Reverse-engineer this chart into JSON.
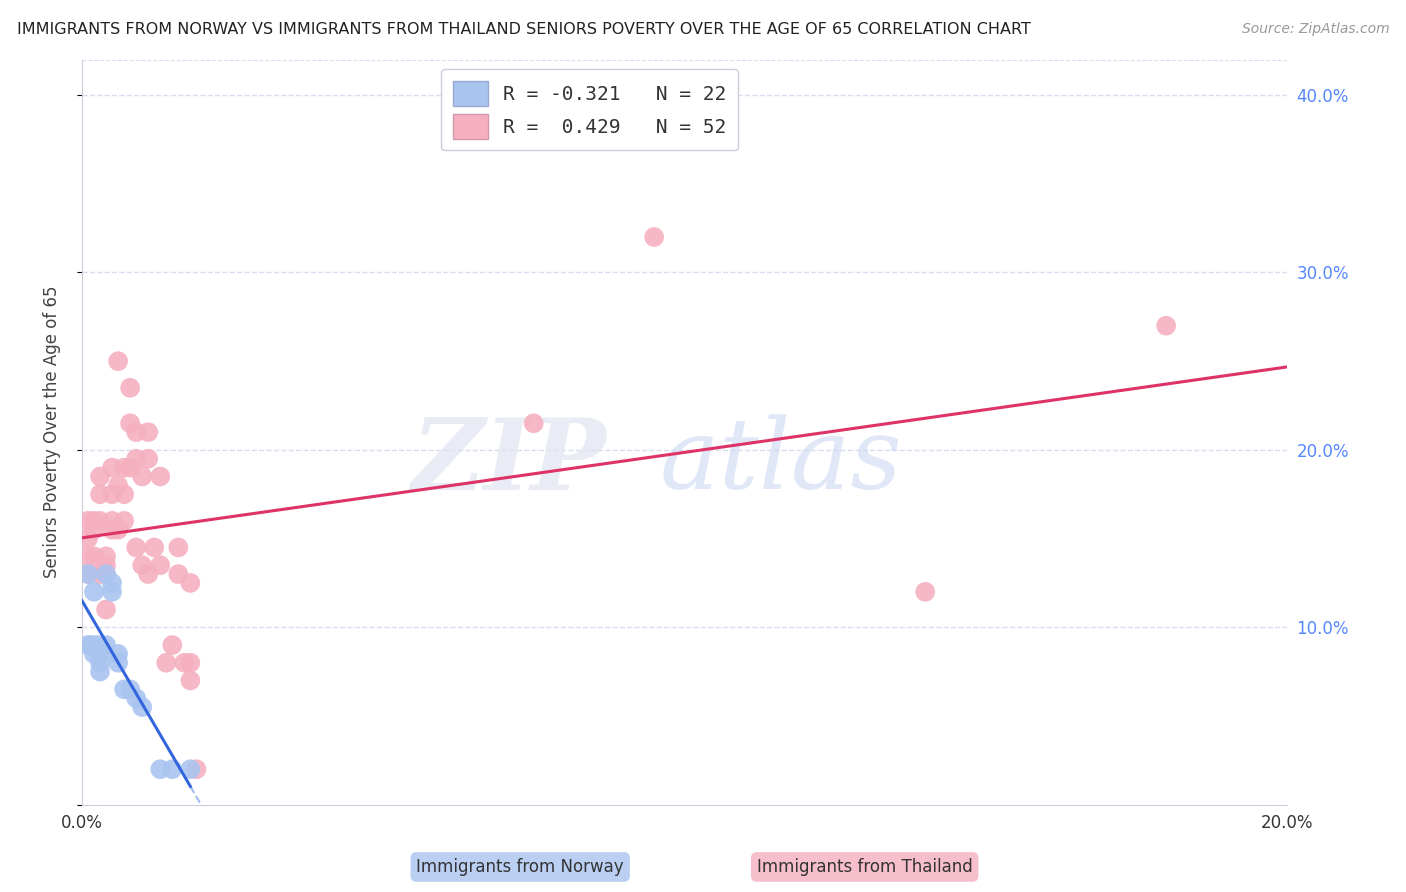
{
  "title": "IMMIGRANTS FROM NORWAY VS IMMIGRANTS FROM THAILAND SENIORS POVERTY OVER THE AGE OF 65 CORRELATION CHART",
  "source": "Source: ZipAtlas.com",
  "ylabel": "Seniors Poverty Over the Age of 65",
  "xlim": [
    0.0,
    0.2
  ],
  "ylim": [
    0.0,
    0.42
  ],
  "norway_r": -0.321,
  "norway_n": 22,
  "thailand_r": 0.429,
  "thailand_n": 52,
  "norway_color": "#aac4f0",
  "thailand_color": "#f5b0c0",
  "norway_line_color": "#3366dd",
  "thailand_line_color": "#dd3366",
  "norway_x": [
    0.001,
    0.001,
    0.0015,
    0.002,
    0.002,
    0.0025,
    0.003,
    0.003,
    0.003,
    0.004,
    0.004,
    0.005,
    0.005,
    0.006,
    0.006,
    0.007,
    0.008,
    0.009,
    0.01,
    0.013,
    0.015,
    0.018
  ],
  "norway_y": [
    0.13,
    0.09,
    0.09,
    0.12,
    0.085,
    0.09,
    0.085,
    0.08,
    0.075,
    0.09,
    0.13,
    0.125,
    0.12,
    0.085,
    0.08,
    0.065,
    0.065,
    0.06,
    0.055,
    0.02,
    0.02,
    0.02
  ],
  "thailand_x": [
    0.001,
    0.001,
    0.001,
    0.001,
    0.002,
    0.002,
    0.002,
    0.003,
    0.003,
    0.003,
    0.003,
    0.004,
    0.004,
    0.004,
    0.004,
    0.005,
    0.005,
    0.005,
    0.005,
    0.006,
    0.006,
    0.006,
    0.007,
    0.007,
    0.007,
    0.008,
    0.008,
    0.008,
    0.009,
    0.009,
    0.009,
    0.01,
    0.01,
    0.011,
    0.011,
    0.011,
    0.012,
    0.013,
    0.013,
    0.014,
    0.015,
    0.016,
    0.016,
    0.017,
    0.018,
    0.018,
    0.018,
    0.019,
    0.075,
    0.095,
    0.14,
    0.18
  ],
  "thailand_y": [
    0.13,
    0.15,
    0.14,
    0.16,
    0.16,
    0.155,
    0.14,
    0.185,
    0.175,
    0.16,
    0.13,
    0.14,
    0.135,
    0.13,
    0.11,
    0.19,
    0.175,
    0.16,
    0.155,
    0.25,
    0.18,
    0.155,
    0.19,
    0.175,
    0.16,
    0.235,
    0.215,
    0.19,
    0.21,
    0.195,
    0.145,
    0.185,
    0.135,
    0.21,
    0.195,
    0.13,
    0.145,
    0.185,
    0.135,
    0.08,
    0.09,
    0.145,
    0.13,
    0.08,
    0.125,
    0.08,
    0.07,
    0.02,
    0.215,
    0.32,
    0.12,
    0.27
  ],
  "watermark_zip": "ZIP",
  "watermark_atlas": "atlas",
  "background_color": "#ffffff",
  "grid_color": "#d8ddf0",
  "legend_norway_label": "R = -0.321   N = 22",
  "legend_thailand_label": "R =  0.429   N = 52",
  "bottom_label_norway": "Immigrants from Norway",
  "bottom_label_thailand": "Immigrants from Thailand"
}
